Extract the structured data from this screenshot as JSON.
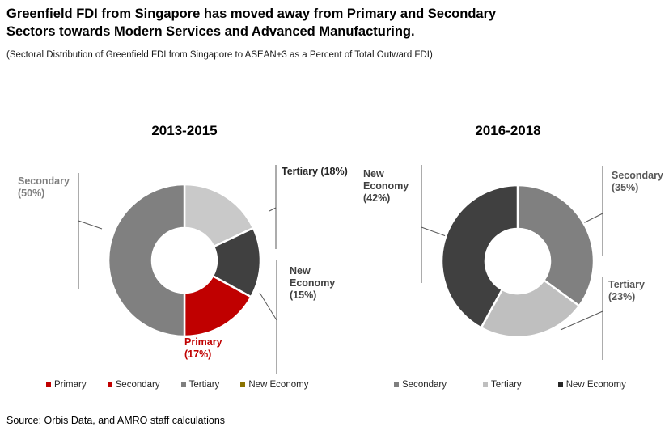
{
  "header": {
    "title_line1": "Greenfield FDI from Singapore has moved away from Primary and Secondary",
    "title_line2": "Sectors towards Modern Services and Advanced Manufacturing.",
    "subtitle": "(Sectoral Distribution of Greenfield FDI from Singapore to ASEAN+3 as a Percent of Total Outward FDI)"
  },
  "source": "Source: Orbis Data, and AMRO staff calculations",
  "chart_data": [
    {
      "type": "pie",
      "subtype": "donut",
      "title": "2013-2015",
      "unit": "percent of total outward FDI",
      "start_angle_deg": 0,
      "direction": "clockwise",
      "slices": [
        {
          "label": "Tertiary",
          "value": 18,
          "color": "#C9C9C9"
        },
        {
          "label": "New Economy",
          "value": 15,
          "color": "#404040"
        },
        {
          "label": "Primary",
          "value": 17,
          "color": "#C00000"
        },
        {
          "label": "Secondary",
          "value": 50,
          "color": "#808080"
        }
      ],
      "callouts": [
        {
          "lines": [
            "Secondary",
            "(50%)"
          ],
          "color": "#7F7F7F"
        },
        {
          "lines": [
            "Tertiary (18%)"
          ],
          "color": "#262626"
        },
        {
          "lines": [
            "New",
            "Economy",
            "(15%)"
          ],
          "color": "#404040"
        },
        {
          "lines": [
            "Primary",
            "(17%)"
          ],
          "color": "#C00000"
        }
      ],
      "legend": [
        {
          "label": "Primary",
          "color": "#C00000"
        },
        {
          "label": "Secondary",
          "color": "#C00000"
        },
        {
          "label": "Tertiary",
          "color": "#7F7F7F"
        },
        {
          "label": "New Economy",
          "color": "#8B7300"
        }
      ]
    },
    {
      "type": "pie",
      "subtype": "donut",
      "title": "2016-2018",
      "unit": "percent of total outward FDI",
      "start_angle_deg": 0,
      "direction": "clockwise",
      "slices": [
        {
          "label": "Secondary",
          "value": 35,
          "color": "#808080"
        },
        {
          "label": "Tertiary",
          "value": 23,
          "color": "#BFBFBF"
        },
        {
          "label": "New Economy",
          "value": 42,
          "color": "#404040"
        }
      ],
      "callouts": [
        {
          "lines": [
            "New",
            "Economy",
            "(42%)"
          ],
          "color": "#404040"
        },
        {
          "lines": [
            "Secondary",
            "(35%)"
          ],
          "color": "#595959"
        },
        {
          "lines": [
            "Tertiary",
            "(23%)"
          ],
          "color": "#595959"
        }
      ],
      "legend": [
        {
          "label": "Secondary",
          "color": "#7F7F7F"
        },
        {
          "label": "Tertiary",
          "color": "#BFBFBF"
        },
        {
          "label": "New Economy",
          "color": "#262626"
        }
      ]
    }
  ]
}
